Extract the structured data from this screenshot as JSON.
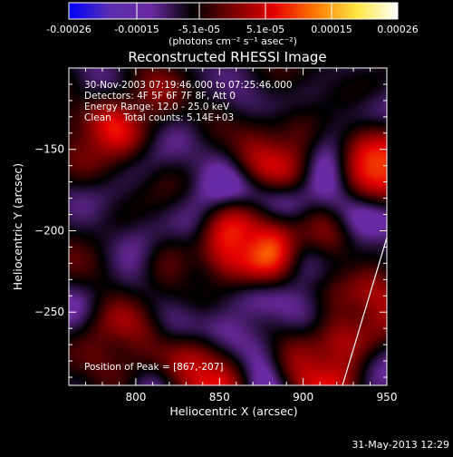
{
  "colorbar": {
    "ticks": [
      "-0.00026",
      "-0.00015",
      "-5.1e-05",
      "5.1e-05",
      "0.00015",
      "0.00026"
    ],
    "unit": "(photons cm⁻² s⁻¹ asec⁻²)",
    "colors": [
      "#0000ff",
      "#5a2fb0",
      "#6a2aa0",
      "#000000",
      "#7a0000",
      "#e60000",
      "#ff7a00",
      "#ffe640",
      "#ffffff"
    ]
  },
  "chart_data": {
    "type": "heatmap",
    "title": "Reconstructed RHESSI Image",
    "xlabel": "Heliocentric X (arcsec)",
    "ylabel": "Heliocentric Y (arcsec)",
    "xlim": [
      760,
      950
    ],
    "ylim": [
      -295,
      -100
    ],
    "x_ticks": [
      800,
      850,
      900,
      950
    ],
    "y_ticks": [
      -150,
      -200,
      -250
    ],
    "zlim": [
      -0.00026,
      0.00026
    ],
    "peak": {
      "x": 867,
      "y": -207
    },
    "annotations": [
      "30-Nov-2003 07:19:46.000 to 07:25:46.000",
      "Detectors: 4F 5F 6F 7F 8F, Att 0",
      "Energy Range: 12.0 - 25.0 keV",
      "Clean    Total counts: 5.14E+03"
    ],
    "peak_label": "Position of Peak = [867,-207]",
    "sources": [
      {
        "x": 867,
        "y": -207,
        "amp": 0.00026
      },
      {
        "x": 945,
        "y": -160,
        "amp": 0.00019
      },
      {
        "x": 935,
        "y": -250,
        "amp": 0.00018
      },
      {
        "x": 910,
        "y": -285,
        "amp": 0.00017
      },
      {
        "x": 840,
        "y": -290,
        "amp": 0.00015
      },
      {
        "x": 885,
        "y": -150,
        "amp": 0.00013
      },
      {
        "x": 800,
        "y": -125,
        "amp": 0.00012
      },
      {
        "x": 775,
        "y": -145,
        "amp": 0.0001
      },
      {
        "x": 900,
        "y": -215,
        "amp": 0.00011
      },
      {
        "x": 790,
        "y": -270,
        "amp": 0.00013
      },
      {
        "x": 830,
        "y": -230,
        "amp": 8e-05
      }
    ]
  },
  "footer": {
    "date": "31-May-2013 12:29"
  }
}
